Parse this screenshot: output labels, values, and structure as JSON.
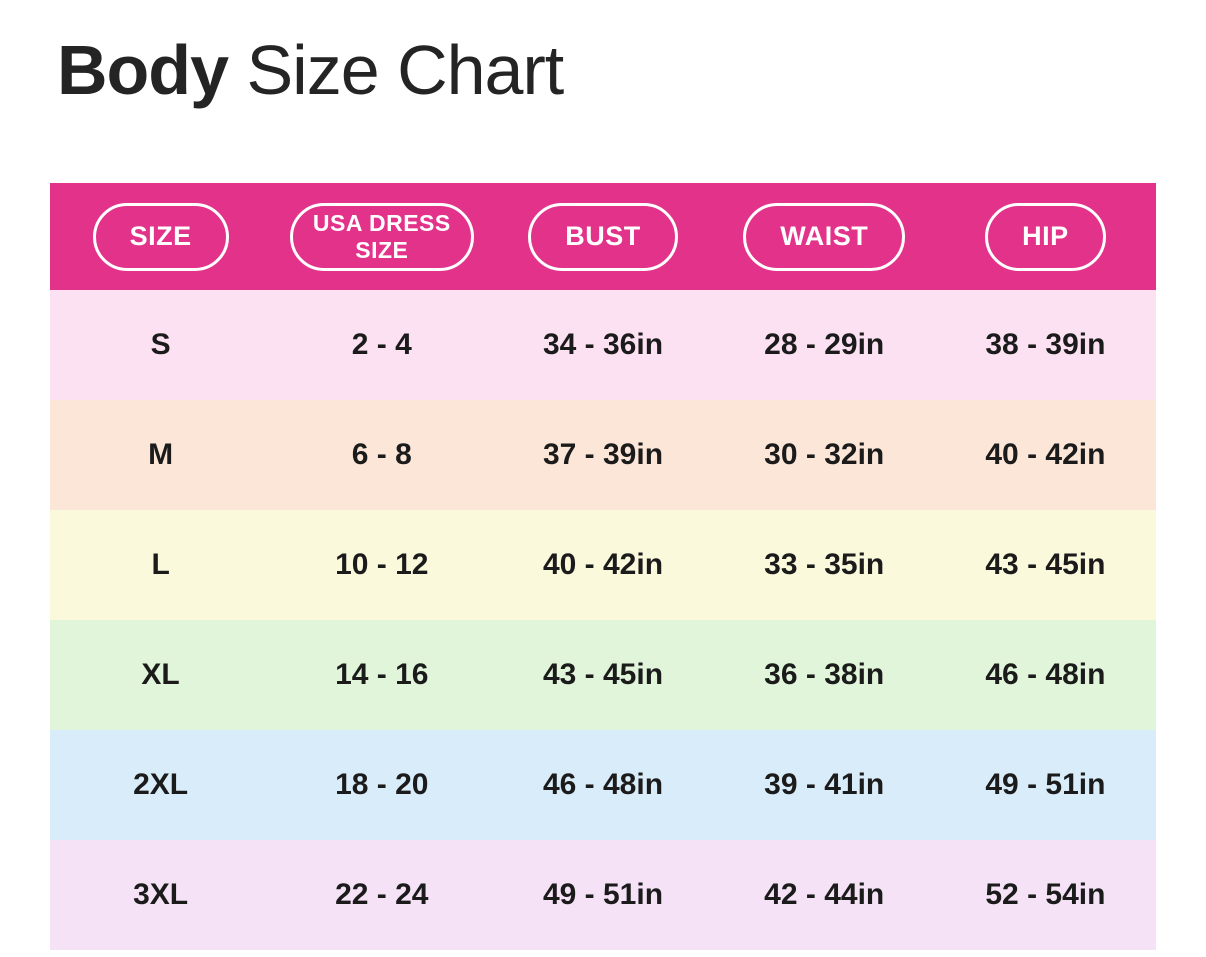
{
  "title": {
    "bold": "Body",
    "regular": " Size Chart"
  },
  "colors": {
    "header_bg": "#E3328A",
    "pill_border": "#FFFFFF",
    "pill_text": "#FFFFFF",
    "cell_text": "#1B1B1B",
    "title_text": "#242424",
    "row_backgrounds": [
      "#FCE1F3",
      "#FCE6D8",
      "#FAF9DC",
      "#E1F5DB",
      "#D9ECF9",
      "#F5E2F7"
    ]
  },
  "table": {
    "headers": [
      {
        "label": "SIZE"
      },
      {
        "label": "USA DRESS\nSIZE"
      },
      {
        "label": "BUST"
      },
      {
        "label": "WAIST"
      },
      {
        "label": "HIP"
      }
    ],
    "rows": [
      {
        "size": "S",
        "dress": "2 - 4",
        "bust": "34 - 36in",
        "waist": "28 - 29in",
        "hip": "38 - 39in",
        "bg": "#FCE1F3"
      },
      {
        "size": "M",
        "dress": "6 - 8",
        "bust": "37 - 39in",
        "waist": "30 - 32in",
        "hip": "40 - 42in",
        "bg": "#FCE6D8"
      },
      {
        "size": "L",
        "dress": "10 - 12",
        "bust": "40 - 42in",
        "waist": "33 - 35in",
        "hip": "43 - 45in",
        "bg": "#FAF9DC"
      },
      {
        "size": "XL",
        "dress": "14 - 16",
        "bust": "43 - 45in",
        "waist": "36 - 38in",
        "hip": "46 - 48in",
        "bg": "#E1F5DB"
      },
      {
        "size": "2XL",
        "dress": "18 - 20",
        "bust": "46 - 48in",
        "waist": "39 - 41in",
        "hip": "49 - 51in",
        "bg": "#D9ECF9"
      },
      {
        "size": "3XL",
        "dress": "22 - 24",
        "bust": "49 - 51in",
        "waist": "42 - 44in",
        "hip": "52 - 54in",
        "bg": "#F5E2F7"
      }
    ]
  },
  "chart_data": {
    "type": "table",
    "title": "Body Size Chart",
    "columns": [
      "SIZE",
      "USA DRESS SIZE",
      "BUST",
      "WAIST",
      "HIP"
    ],
    "rows": [
      [
        "S",
        "2 - 4",
        "34 - 36in",
        "28 - 29in",
        "38 - 39in"
      ],
      [
        "M",
        "6 - 8",
        "37 - 39in",
        "30 - 32in",
        "40 - 42in"
      ],
      [
        "L",
        "10 - 12",
        "40 - 42in",
        "33 - 35in",
        "43 - 45in"
      ],
      [
        "XL",
        "14 - 16",
        "43 - 45in",
        "36 - 38in",
        "46 - 48in"
      ],
      [
        "2XL",
        "18 - 20",
        "46 - 48in",
        "39 - 41in",
        "49 - 51in"
      ],
      [
        "3XL",
        "22 - 24",
        "49 - 51in",
        "42 - 44in",
        "52 - 54in"
      ]
    ]
  }
}
